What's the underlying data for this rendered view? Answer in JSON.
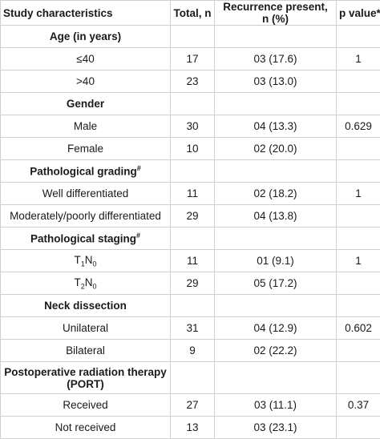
{
  "header": {
    "col0": "Study characteristics",
    "col1": "Total, n",
    "col2_line1": "Recurrence present,",
    "col2_line2": "n (%)",
    "col3": "p value*"
  },
  "sections": [
    {
      "title": "Age (in years)",
      "rows": [
        {
          "label": "≤40",
          "total": "17",
          "recurrence": "03 (17.6)",
          "p": "1"
        },
        {
          "label": ">40",
          "total": "23",
          "recurrence": "03 (13.0)",
          "p": ""
        }
      ]
    },
    {
      "title": "Gender",
      "rows": [
        {
          "label": "Male",
          "total": "30",
          "recurrence": "04 (13.3)",
          "p": "0.629"
        },
        {
          "label": "Female",
          "total": "10",
          "recurrence": "02 (20.0)",
          "p": ""
        }
      ]
    },
    {
      "title": "Pathological grading",
      "title_sup": "#",
      "rows": [
        {
          "label": "Well differentiated",
          "total": "11",
          "recurrence": "02 (18.2)",
          "p": "1"
        },
        {
          "label": "Moderately/poorly differentiated",
          "total": "29",
          "recurrence": "04 (13.8)",
          "p": ""
        }
      ]
    },
    {
      "title": "Pathological staging",
      "title_sup": "#",
      "rows": [
        {
          "label_main": "T",
          "label_sub1": "1",
          "label_mid": "N",
          "label_sub2": "0",
          "total": "11",
          "recurrence": "01 (9.1)",
          "p": "1"
        },
        {
          "label_main": "T",
          "label_sub1": "2",
          "label_mid": "N",
          "label_sub2": "0",
          "total": "29",
          "recurrence": "05 (17.2)",
          "p": ""
        }
      ]
    },
    {
      "title": "Neck dissection",
      "rows": [
        {
          "label": "Unilateral",
          "total": "31",
          "recurrence": "04 (12.9)",
          "p": "0.602"
        },
        {
          "label": "Bilateral",
          "total": "9",
          "recurrence": "02 (22.2)",
          "p": ""
        }
      ]
    },
    {
      "title": "Postoperative radiation therapy (PORT)",
      "rows": [
        {
          "label": "Received",
          "total": "27",
          "recurrence": "03 (11.1)",
          "p": "0.37"
        },
        {
          "label": "Not received",
          "total": "13",
          "recurrence": "03 (23.1)",
          "p": ""
        }
      ]
    }
  ]
}
